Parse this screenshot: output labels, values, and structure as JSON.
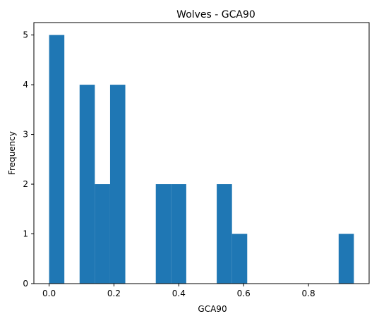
{
  "chart_data": {
    "type": "bar",
    "subtype": "histogram",
    "title": "Wolves - GCA90",
    "xlabel": "GCA90",
    "ylabel": "Frequency",
    "xlim": [
      -0.047,
      0.987
    ],
    "ylim": [
      0,
      5.25
    ],
    "bin_edges": [
      0.0,
      0.047,
      0.094,
      0.141,
      0.188,
      0.235,
      0.282,
      0.329,
      0.376,
      0.423,
      0.47,
      0.517,
      0.564,
      0.611,
      0.658,
      0.705,
      0.752,
      0.799,
      0.846,
      0.893,
      0.94
    ],
    "values": [
      5,
      0,
      4,
      2,
      4,
      0,
      0,
      2,
      2,
      0,
      0,
      2,
      1,
      0,
      0,
      0,
      0,
      0,
      0,
      1
    ],
    "x_ticks": [
      0.0,
      0.2,
      0.4,
      0.6,
      0.8
    ],
    "x_tick_labels": [
      "0.0",
      "0.2",
      "0.4",
      "0.6",
      "0.8"
    ],
    "y_ticks": [
      0,
      1,
      2,
      3,
      4,
      5
    ],
    "y_tick_labels": [
      "0",
      "1",
      "2",
      "3",
      "4",
      "5"
    ],
    "grid": false,
    "bar_color": "#1f77b4"
  }
}
